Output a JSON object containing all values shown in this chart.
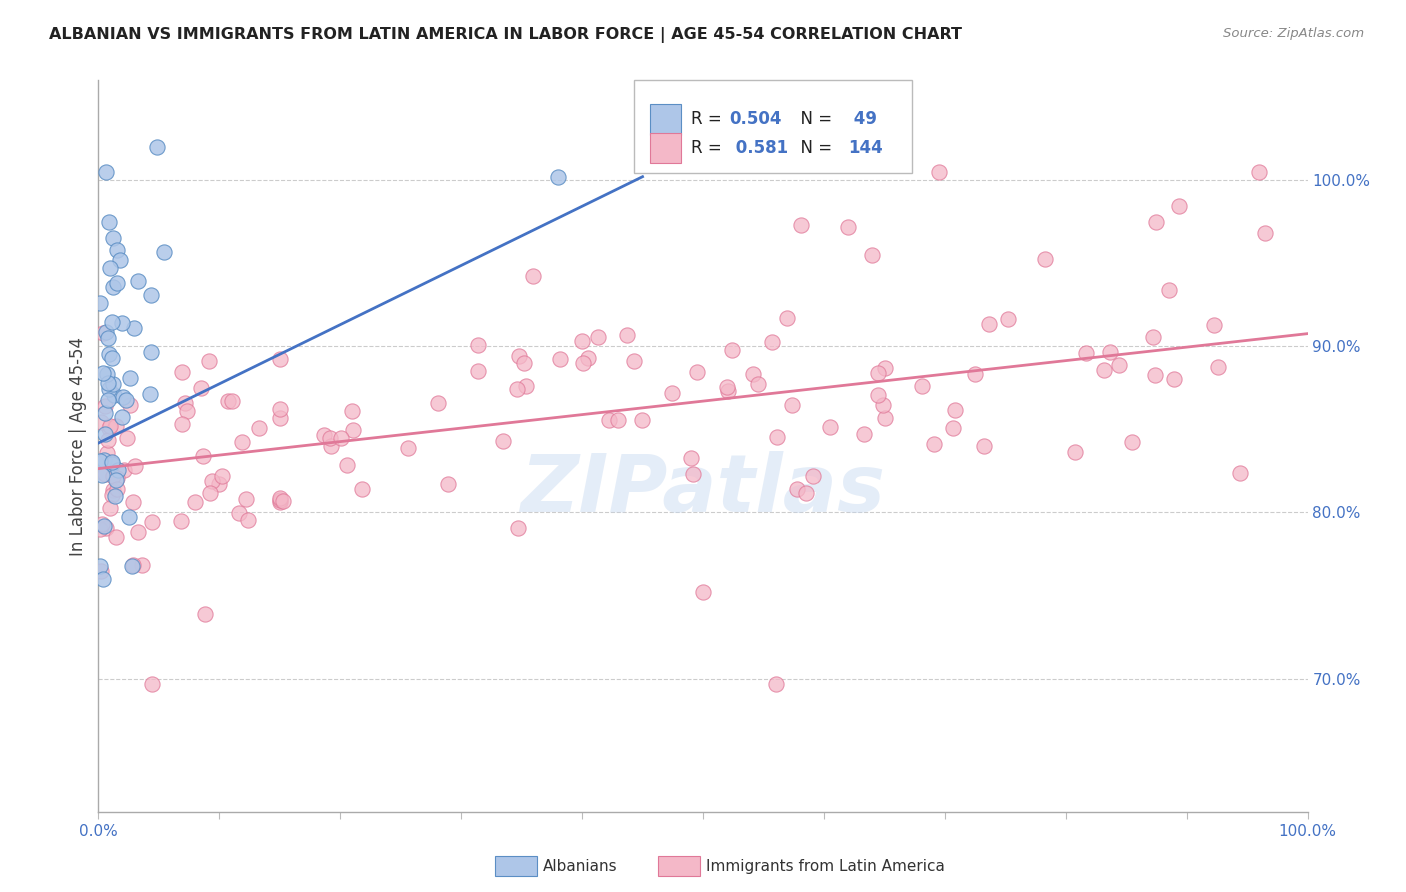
{
  "title": "ALBANIAN VS IMMIGRANTS FROM LATIN AMERICA IN LABOR FORCE | AGE 45-54 CORRELATION CHART",
  "source": "Source: ZipAtlas.com",
  "ylabel": "In Labor Force | Age 45-54",
  "xlim": [
    0.0,
    1.0
  ],
  "ylim": [
    0.62,
    1.06
  ],
  "ytick_positions": [
    0.7,
    0.8,
    0.9,
    1.0
  ],
  "ytick_labels": [
    "70.0%",
    "80.0%",
    "90.0%",
    "100.0%"
  ],
  "legend_r_blue": "0.504",
  "legend_n_blue": "49",
  "legend_r_pink": "0.581",
  "legend_n_pink": "144",
  "blue_fill": "#aec6e8",
  "blue_edge": "#5b8ec4",
  "pink_fill": "#f4b8c8",
  "pink_edge": "#e07898",
  "blue_line_color": "#4472c4",
  "pink_line_color": "#e07898",
  "watermark": "ZIPatlas",
  "background_color": "#ffffff",
  "grid_color": "#cccccc",
  "title_color": "#222222",
  "source_color": "#888888",
  "tick_color": "#4472c4"
}
